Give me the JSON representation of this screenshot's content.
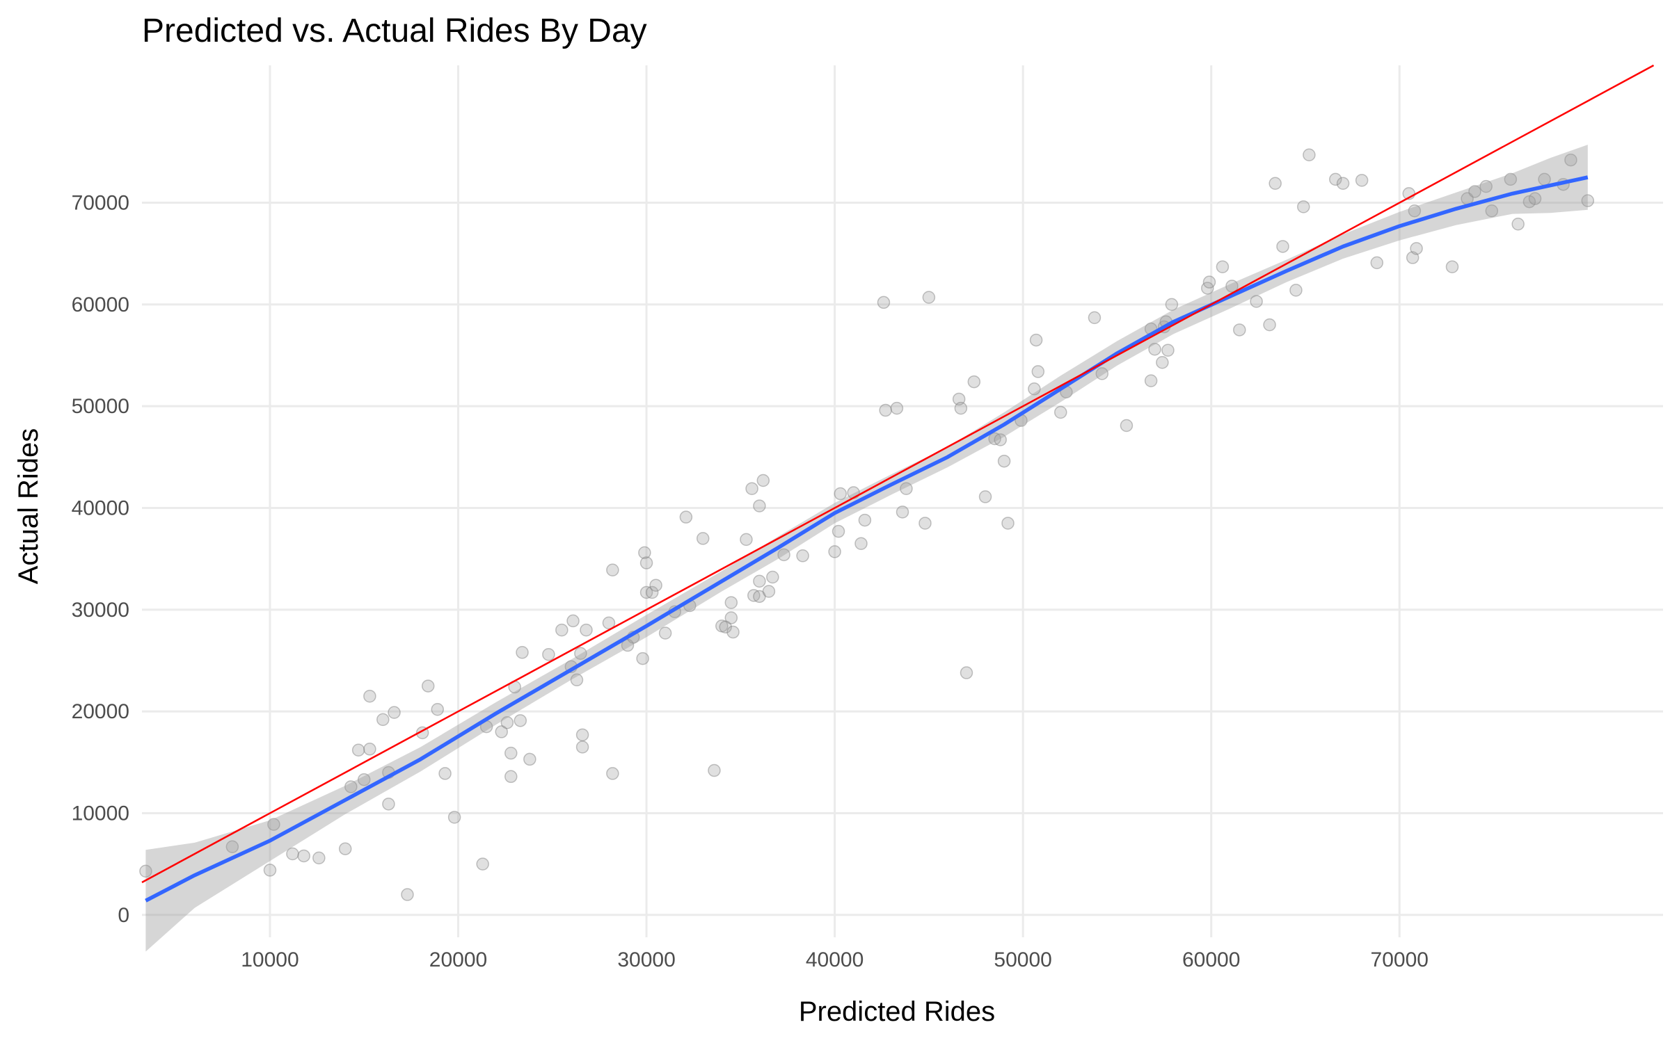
{
  "chart_data": {
    "type": "scatter",
    "title": "Predicted vs. Actual Rides By Day",
    "xlabel": "Predicted Rides",
    "ylabel": "Actual Rides",
    "xlim": [
      3200,
      84000
    ],
    "ylim": [
      -2200,
      83500
    ],
    "grid": true,
    "x_ticks": [
      10000,
      20000,
      30000,
      40000,
      50000,
      60000,
      70000
    ],
    "y_ticks": [
      0,
      10000,
      20000,
      30000,
      40000,
      50000,
      60000,
      70000
    ],
    "x_tick_labels": [
      "10000",
      "20000",
      "30000",
      "40000",
      "50000",
      "60000",
      "70000"
    ],
    "y_tick_labels": [
      "0",
      "10000",
      "20000",
      "30000",
      "40000",
      "50000",
      "60000",
      "70000"
    ],
    "colors": {
      "points": "#9e9e9e",
      "smooth_line": "#3366ff",
      "confidence_band": "#999999",
      "identity_line": "#ff0000",
      "grid": "#ebebeb"
    },
    "identity_line": {
      "slope": 1,
      "intercept": 0
    },
    "points": [
      [
        3400,
        4300
      ],
      [
        8000,
        6700
      ],
      [
        10000,
        4400
      ],
      [
        10200,
        8900
      ],
      [
        11200,
        6000
      ],
      [
        11800,
        5800
      ],
      [
        12600,
        5600
      ],
      [
        14000,
        6500
      ],
      [
        14300,
        12600
      ],
      [
        14700,
        16200
      ],
      [
        15000,
        13300
      ],
      [
        15300,
        16300
      ],
      [
        15300,
        21500
      ],
      [
        16000,
        19200
      ],
      [
        16300,
        10900
      ],
      [
        16300,
        14000
      ],
      [
        16600,
        19900
      ],
      [
        17300,
        2000
      ],
      [
        18100,
        17900
      ],
      [
        18400,
        22500
      ],
      [
        18900,
        20200
      ],
      [
        19300,
        13900
      ],
      [
        19800,
        9600
      ],
      [
        21300,
        5000
      ],
      [
        21500,
        18500
      ],
      [
        22300,
        18000
      ],
      [
        22600,
        18900
      ],
      [
        22800,
        13600
      ],
      [
        22800,
        15900
      ],
      [
        23000,
        22400
      ],
      [
        23300,
        19100
      ],
      [
        23400,
        25800
      ],
      [
        23800,
        15300
      ],
      [
        24800,
        25600
      ],
      [
        25500,
        28000
      ],
      [
        26000,
        24400
      ],
      [
        26100,
        28900
      ],
      [
        26300,
        23100
      ],
      [
        26500,
        25700
      ],
      [
        26600,
        17700
      ],
      [
        26600,
        16500
      ],
      [
        26800,
        28000
      ],
      [
        28000,
        28700
      ],
      [
        28200,
        13900
      ],
      [
        28200,
        33900
      ],
      [
        29000,
        26500
      ],
      [
        29300,
        27300
      ],
      [
        29800,
        25200
      ],
      [
        29900,
        35600
      ],
      [
        30000,
        34600
      ],
      [
        30000,
        31700
      ],
      [
        30300,
        31700
      ],
      [
        30500,
        32400
      ],
      [
        31000,
        27700
      ],
      [
        31500,
        29800
      ],
      [
        32100,
        39100
      ],
      [
        32300,
        30400
      ],
      [
        33000,
        37000
      ],
      [
        33600,
        14200
      ],
      [
        34000,
        28400
      ],
      [
        34200,
        28300
      ],
      [
        34500,
        30700
      ],
      [
        34500,
        29200
      ],
      [
        34600,
        27800
      ],
      [
        35300,
        36900
      ],
      [
        35600,
        41900
      ],
      [
        35700,
        31400
      ],
      [
        36000,
        31300
      ],
      [
        36000,
        32800
      ],
      [
        36000,
        40200
      ],
      [
        36200,
        42700
      ],
      [
        36500,
        31800
      ],
      [
        36700,
        33200
      ],
      [
        37300,
        35400
      ],
      [
        38300,
        35300
      ],
      [
        40000,
        35700
      ],
      [
        40200,
        37700
      ],
      [
        40300,
        41400
      ],
      [
        41000,
        41500
      ],
      [
        41400,
        36500
      ],
      [
        41600,
        38800
      ],
      [
        42600,
        60200
      ],
      [
        42700,
        49600
      ],
      [
        43300,
        49800
      ],
      [
        43600,
        39600
      ],
      [
        43800,
        41900
      ],
      [
        44800,
        38500
      ],
      [
        45000,
        60700
      ],
      [
        46600,
        50700
      ],
      [
        46700,
        49800
      ],
      [
        47000,
        23800
      ],
      [
        47400,
        52400
      ],
      [
        48000,
        41100
      ],
      [
        48500,
        46800
      ],
      [
        48800,
        46700
      ],
      [
        49000,
        44600
      ],
      [
        49200,
        38500
      ],
      [
        49900,
        48600
      ],
      [
        50600,
        51700
      ],
      [
        50700,
        56500
      ],
      [
        50800,
        53400
      ],
      [
        52000,
        49400
      ],
      [
        52300,
        51400
      ],
      [
        53800,
        58700
      ],
      [
        54200,
        53200
      ],
      [
        55500,
        48100
      ],
      [
        56800,
        52500
      ],
      [
        56800,
        57600
      ],
      [
        57000,
        55600
      ],
      [
        57400,
        54300
      ],
      [
        57500,
        57800
      ],
      [
        57600,
        58300
      ],
      [
        57700,
        55500
      ],
      [
        57900,
        60000
      ],
      [
        59800,
        61600
      ],
      [
        59900,
        62200
      ],
      [
        60600,
        63700
      ],
      [
        61100,
        61800
      ],
      [
        61500,
        57500
      ],
      [
        62400,
        60300
      ],
      [
        63100,
        58000
      ],
      [
        63400,
        71900
      ],
      [
        63800,
        65700
      ],
      [
        64500,
        61400
      ],
      [
        64900,
        69600
      ],
      [
        65200,
        74700
      ],
      [
        66600,
        72300
      ],
      [
        67000,
        71900
      ],
      [
        68000,
        72200
      ],
      [
        68800,
        64100
      ],
      [
        70500,
        70900
      ],
      [
        70700,
        64600
      ],
      [
        70800,
        69200
      ],
      [
        70900,
        65500
      ],
      [
        72800,
        63700
      ],
      [
        73600,
        70400
      ],
      [
        74000,
        71100
      ],
      [
        74600,
        71600
      ],
      [
        74900,
        69200
      ],
      [
        75900,
        72300
      ],
      [
        76300,
        67900
      ],
      [
        76900,
        70100
      ],
      [
        77200,
        70400
      ],
      [
        77700,
        72300
      ],
      [
        78700,
        71800
      ],
      [
        79100,
        74200
      ],
      [
        80000,
        70200
      ]
    ],
    "smooth": {
      "x": [
        3400,
        6000,
        10000,
        14000,
        18000,
        22000,
        26000,
        30000,
        34000,
        37000,
        40000,
        43000,
        46000,
        49000,
        52000,
        55000,
        58000,
        61000,
        64000,
        67000,
        70000,
        73000,
        76000,
        78000,
        80000
      ],
      "y": [
        1400,
        3900,
        7300,
        11300,
        15300,
        19800,
        24100,
        28400,
        32800,
        36100,
        39500,
        42300,
        45000,
        48200,
        51700,
        55200,
        58300,
        60800,
        63300,
        65700,
        67700,
        69400,
        70900,
        71700,
        72500
      ],
      "lower": [
        -3600,
        700,
        5300,
        9900,
        14100,
        18700,
        23100,
        27300,
        31800,
        35000,
        38500,
        41300,
        44000,
        47000,
        50400,
        54000,
        57100,
        59600,
        62200,
        64500,
        66300,
        67800,
        68900,
        69000,
        69300
      ],
      "upper": [
        6400,
        7100,
        9300,
        12700,
        16500,
        20900,
        25100,
        29500,
        33800,
        37200,
        40500,
        43300,
        46000,
        49400,
        53000,
        56400,
        59500,
        62000,
        64400,
        66900,
        69100,
        71000,
        72900,
        74400,
        75700
      ]
    }
  }
}
